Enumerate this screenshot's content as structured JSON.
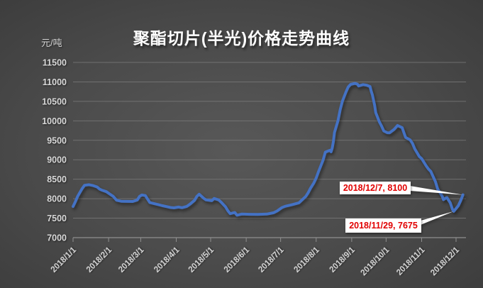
{
  "chart_data": {
    "type": "line",
    "title": "聚酯切片(半光)价格走势曲线",
    "unit_label": "元/吨",
    "ylim": [
      7000,
      11500
    ],
    "ytick_step": 500,
    "yticks": [
      7000,
      7500,
      8000,
      8500,
      9000,
      9500,
      10000,
      10500,
      11000,
      11500
    ],
    "xticks": [
      "2018/1/1",
      "2018/2/1",
      "2018/3/1",
      "2018/4/1",
      "2018/5/1",
      "2018/6/1",
      "2018/7/1",
      "2018/8/1",
      "2018/9/1",
      "2018/10/1",
      "2018/11/1",
      "2018/12/1"
    ],
    "grid": true,
    "legend": "none",
    "series": [
      {
        "points": [
          [
            "2018/1/1",
            7800
          ],
          [
            "2018/1/3",
            7920
          ],
          [
            "2018/1/5",
            8060
          ],
          [
            "2018/1/9",
            8260
          ],
          [
            "2018/1/11",
            8345
          ],
          [
            "2018/1/15",
            8360
          ],
          [
            "2018/1/18",
            8340
          ],
          [
            "2018/1/22",
            8300
          ],
          [
            "2018/1/24",
            8250
          ],
          [
            "2018/1/26",
            8220
          ],
          [
            "2018/1/30",
            8180
          ],
          [
            "2018/2/2",
            8120
          ],
          [
            "2018/2/5",
            8060
          ],
          [
            "2018/2/8",
            7960
          ],
          [
            "2018/2/12",
            7935
          ],
          [
            "2018/2/22",
            7930
          ],
          [
            "2018/2/26",
            7965
          ],
          [
            "2018/2/28",
            8060
          ],
          [
            "2018/3/2",
            8095
          ],
          [
            "2018/3/5",
            8080
          ],
          [
            "2018/3/7",
            7990
          ],
          [
            "2018/3/9",
            7900
          ],
          [
            "2018/3/13",
            7870
          ],
          [
            "2018/3/16",
            7850
          ],
          [
            "2018/3/20",
            7820
          ],
          [
            "2018/3/23",
            7800
          ],
          [
            "2018/3/27",
            7775
          ],
          [
            "2018/3/30",
            7765
          ],
          [
            "2018/4/3",
            7785
          ],
          [
            "2018/4/6",
            7768
          ],
          [
            "2018/4/10",
            7800
          ],
          [
            "2018/4/13",
            7860
          ],
          [
            "2018/4/17",
            7960
          ],
          [
            "2018/4/19",
            8060
          ],
          [
            "2018/4/21",
            8115
          ],
          [
            "2018/4/25",
            8010
          ],
          [
            "2018/4/27",
            7970
          ],
          [
            "2018/5/2",
            7950
          ],
          [
            "2018/5/4",
            8005
          ],
          [
            "2018/5/8",
            7970
          ],
          [
            "2018/5/10",
            7915
          ],
          [
            "2018/5/14",
            7790
          ],
          [
            "2018/5/16",
            7690
          ],
          [
            "2018/5/18",
            7615
          ],
          [
            "2018/5/22",
            7645
          ],
          [
            "2018/5/24",
            7575
          ],
          [
            "2018/5/28",
            7605
          ],
          [
            "2018/6/4",
            7600
          ],
          [
            "2018/6/11",
            7595
          ],
          [
            "2018/6/19",
            7605
          ],
          [
            "2018/6/25",
            7640
          ],
          [
            "2018/6/28",
            7685
          ],
          [
            "2018/7/2",
            7770
          ],
          [
            "2018/7/5",
            7805
          ],
          [
            "2018/7/10",
            7840
          ],
          [
            "2018/7/13",
            7862
          ],
          [
            "2018/7/17",
            7895
          ],
          [
            "2018/7/19",
            7950
          ],
          [
            "2018/7/23",
            8060
          ],
          [
            "2018/7/25",
            8150
          ],
          [
            "2018/7/27",
            8265
          ],
          [
            "2018/7/30",
            8405
          ],
          [
            "2018/8/1",
            8530
          ],
          [
            "2018/8/3",
            8690
          ],
          [
            "2018/8/7",
            8990
          ],
          [
            "2018/8/9",
            9195
          ],
          [
            "2018/8/13",
            9245
          ],
          [
            "2018/8/14",
            9205
          ],
          [
            "2018/8/15",
            9300
          ],
          [
            "2018/8/16",
            9460
          ],
          [
            "2018/8/17",
            9700
          ],
          [
            "2018/8/20",
            10000
          ],
          [
            "2018/8/22",
            10290
          ],
          [
            "2018/8/24",
            10510
          ],
          [
            "2018/8/27",
            10740
          ],
          [
            "2018/8/29",
            10870
          ],
          [
            "2018/8/31",
            10935
          ],
          [
            "2018/9/4",
            10960
          ],
          [
            "2018/9/6",
            10940
          ],
          [
            "2018/9/7",
            10895
          ],
          [
            "2018/9/11",
            10930
          ],
          [
            "2018/9/14",
            10915
          ],
          [
            "2018/9/17",
            10880
          ],
          [
            "2018/9/18",
            10760
          ],
          [
            "2018/9/19",
            10670
          ],
          [
            "2018/9/21",
            10400
          ],
          [
            "2018/9/22",
            10210
          ],
          [
            "2018/9/25",
            9980
          ],
          [
            "2018/9/27",
            9870
          ],
          [
            "2018/9/29",
            9740
          ],
          [
            "2018/10/2",
            9695
          ],
          [
            "2018/10/4",
            9690
          ],
          [
            "2018/10/8",
            9780
          ],
          [
            "2018/10/11",
            9880
          ],
          [
            "2018/10/15",
            9825
          ],
          [
            "2018/10/17",
            9660
          ],
          [
            "2018/10/18",
            9575
          ],
          [
            "2018/10/22",
            9510
          ],
          [
            "2018/10/24",
            9420
          ],
          [
            "2018/10/26",
            9280
          ],
          [
            "2018/10/30",
            9080
          ],
          [
            "2018/11/1",
            9030
          ],
          [
            "2018/11/5",
            8840
          ],
          [
            "2018/11/7",
            8760
          ],
          [
            "2018/11/9",
            8700
          ],
          [
            "2018/11/13",
            8440
          ],
          [
            "2018/11/15",
            8250
          ],
          [
            "2018/11/19",
            8060
          ],
          [
            "2018/11/20",
            7975
          ],
          [
            "2018/11/22",
            8015
          ],
          [
            "2018/11/23",
            8030
          ],
          [
            "2018/11/26",
            7890
          ],
          [
            "2018/11/28",
            7720
          ],
          [
            "2018/11/29",
            7675
          ],
          [
            "2018/12/3",
            7820
          ],
          [
            "2018/12/5",
            7950
          ],
          [
            "2018/12/7",
            8100
          ]
        ]
      }
    ],
    "annotations": [
      {
        "label": "2018/12/7, 8100",
        "date": "2018/12/7",
        "value": 8100
      },
      {
        "label": "2018/11/29, 7675",
        "date": "2018/11/29",
        "value": 7675
      }
    ],
    "colors": {
      "line": "#4472C4",
      "grid": "#7d7d7d",
      "axis": "#8f8f8f",
      "tick_label": "#d8d8d8",
      "title": "#ffffff",
      "unit_label": "#d6d6d6",
      "annotation_text": "#e10000",
      "annotation_bg": "#ffffff",
      "callout_line": "#ffffff",
      "background_center": "#585858",
      "background_edge": "#272727"
    }
  }
}
